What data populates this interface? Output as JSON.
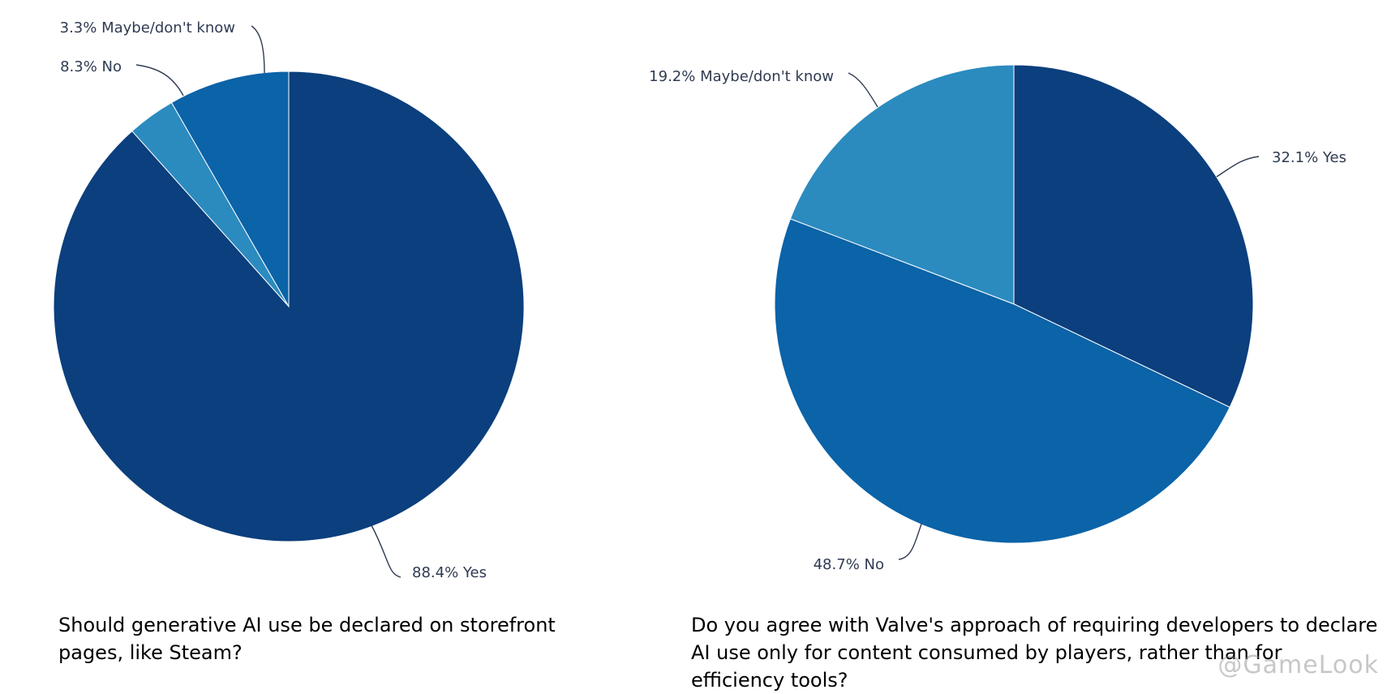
{
  "chart_data": [
    {
      "type": "pie",
      "title": "Should generative AI use be declared on storefront pages, like Steam?",
      "slices": [
        {
          "label": "Yes",
          "value": 88.4,
          "color": "#0b3f7d",
          "text": "88.4% Yes"
        },
        {
          "label": "Maybe/don't know",
          "value": 3.3,
          "color": "#2b8bbf",
          "text": "3.3% Maybe/don't know"
        },
        {
          "label": "No",
          "value": 8.3,
          "color": "#0b63a8",
          "text": "8.3% No"
        }
      ]
    },
    {
      "type": "pie",
      "title": "Do you agree with Valve's approach of requiring developers to declare AI use only for content consumed by players, rather than for efficiency tools?",
      "slices": [
        {
          "label": "Yes",
          "value": 32.1,
          "color": "#0b3f7d",
          "text": "32.1% Yes"
        },
        {
          "label": "No",
          "value": 48.7,
          "color": "#0b63a8",
          "text": "48.7% No"
        },
        {
          "label": "Maybe/don't know",
          "value": 19.2,
          "color": "#2b8bbf",
          "text": "19.2% Maybe/don't know"
        }
      ]
    }
  ],
  "watermark": "@GameLook"
}
